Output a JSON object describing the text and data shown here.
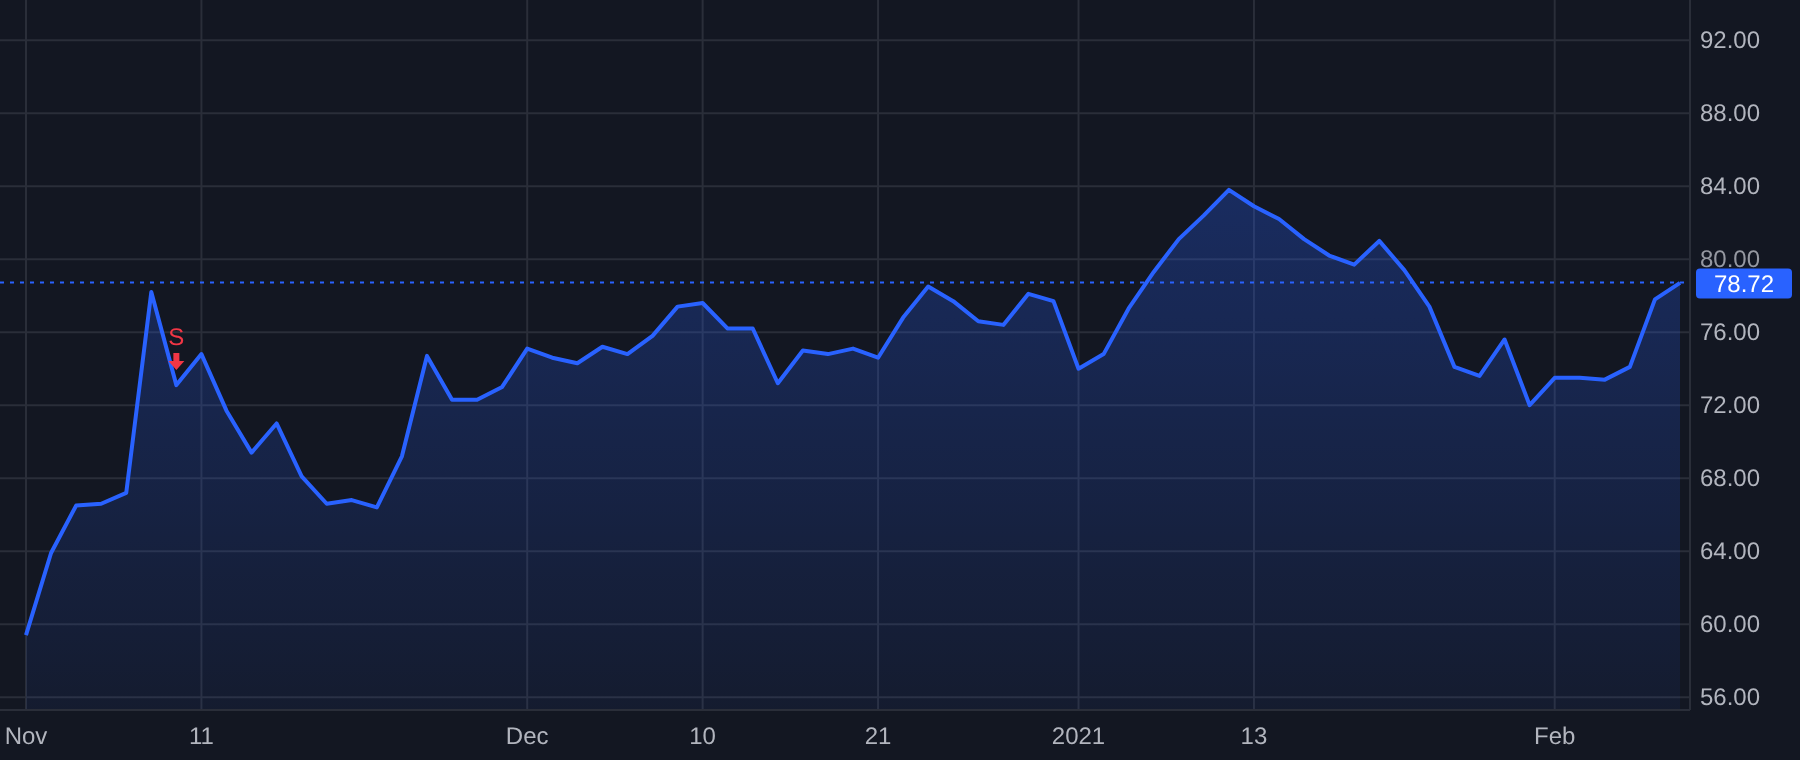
{
  "chart_data": {
    "type": "area",
    "categories": [
      "Nov",
      null,
      null,
      null,
      null,
      null,
      null,
      "11",
      null,
      null,
      null,
      null,
      null,
      null,
      null,
      null,
      null,
      null,
      null,
      null,
      "Dec",
      null,
      null,
      null,
      null,
      null,
      null,
      "10",
      null,
      null,
      null,
      null,
      null,
      null,
      "21",
      null,
      null,
      null,
      null,
      null,
      null,
      null,
      "2021",
      null,
      null,
      null,
      null,
      null,
      null,
      "13",
      null,
      null,
      null,
      null,
      null,
      null,
      null,
      null,
      null,
      null,
      null,
      "Feb",
      null,
      null,
      null,
      null,
      null
    ],
    "series": [
      {
        "color": "#2962ff",
        "values": [
          59.4,
          63.9,
          66.5,
          66.6,
          67.2,
          78.2,
          73.1,
          74.8,
          71.7,
          69.4,
          71.0,
          68.1,
          66.6,
          66.8,
          66.4,
          69.2,
          74.7,
          72.3,
          72.3,
          73.0,
          75.1,
          74.6,
          74.3,
          75.2,
          74.8,
          75.8,
          77.4,
          77.6,
          76.2,
          76.2,
          73.2,
          75.0,
          74.8,
          75.1,
          74.6,
          76.8,
          78.5,
          77.7,
          76.6,
          76.4,
          78.1,
          77.7,
          74.0,
          74.8,
          77.3,
          79.3,
          81.1,
          82.4,
          83.8,
          82.9,
          82.2,
          81.1,
          80.2,
          79.7,
          81.0,
          79.4,
          77.4,
          74.1,
          73.6,
          75.6,
          72.0,
          73.5,
          73.5,
          73.4,
          74.1,
          77.8,
          78.7
        ]
      }
    ],
    "ylim": [
      55.3,
      94.2
    ],
    "yticks": [
      {
        "value": 56,
        "label": "56.00"
      },
      {
        "value": 60,
        "label": "60.00"
      },
      {
        "value": 64,
        "label": "64.00"
      },
      {
        "value": 68,
        "label": "68.00"
      },
      {
        "value": 72,
        "label": "72.00"
      },
      {
        "value": 76,
        "label": "76.00"
      },
      {
        "value": 80,
        "label": "80.00"
      },
      {
        "value": 84,
        "label": "84.00"
      },
      {
        "value": 88,
        "label": "88.00"
      },
      {
        "value": 92,
        "label": "92.00"
      }
    ],
    "grid": true,
    "ref_lines": [
      {
        "axis": "y",
        "value": 78.72,
        "label": "78.72",
        "color": "#2962ff",
        "line_style": "dotted"
      }
    ],
    "annotations": [
      {
        "text": "S",
        "y": 73.1
      }
    ]
  }
}
